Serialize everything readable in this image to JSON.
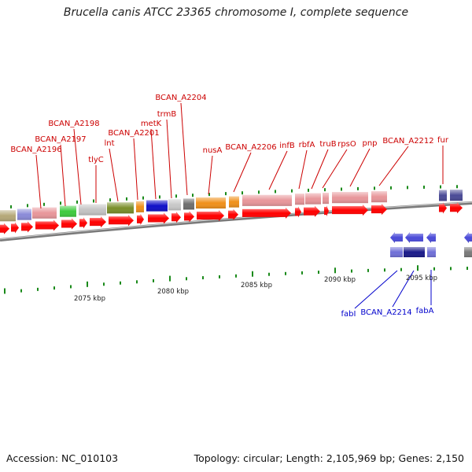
{
  "title": "Brucella canis ATCC 23365 chromosome I, complete sequence",
  "footer": {
    "accession": "Accession: NC_010103",
    "topology": "Topology: circular; Length: 2,105,969 bp; Genes: 2,150"
  },
  "scale_labels": [
    "2075 kbp",
    "2080 kbp",
    "2085 kbp",
    "2090 kbp",
    "2095 kbp"
  ],
  "colors": {
    "forward_feature": "#ff0000",
    "reverse_feature": "#ff0000",
    "gene_label_top": "#cc0000",
    "gene_label_bottom": "#0000cc",
    "backbone": "#777777",
    "tick": "#1a8a1a"
  },
  "gene_labels_top": [
    "BCAN_A2196",
    "BCAN_A2197",
    "BCAN_A2198",
    "tlyC",
    "lnt",
    "BCAN_A2201",
    "metK",
    "trmB",
    "BCAN_A2204",
    "nusA",
    "BCAN_A2206",
    "infB",
    "rbfA",
    "truB",
    "rpsO",
    "pnp",
    "BCAN_A2212",
    "fur"
  ],
  "gene_labels_bottom": [
    "fabI",
    "BCAN_A2214",
    "fabA"
  ]
}
